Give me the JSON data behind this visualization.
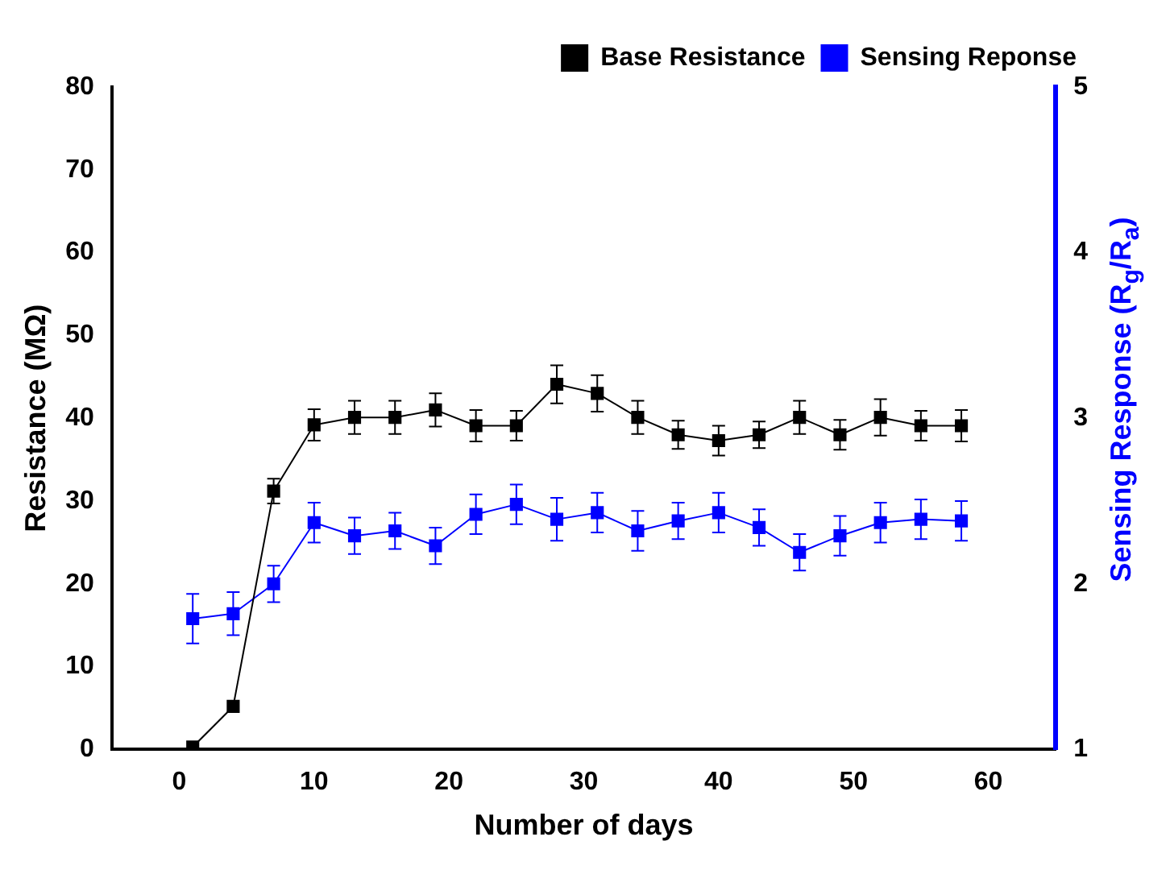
{
  "chart_data": {
    "type": "line",
    "xlabel": "Number of days",
    "ylabel": "Resistance (MΩ)",
    "y2label": "Sensing Response (R$_{g}$/R$_{a}$)",
    "x": [
      1,
      4,
      7,
      10,
      13,
      16,
      19,
      22,
      25,
      28,
      31,
      34,
      37,
      40,
      43,
      46,
      49,
      52,
      55,
      58
    ],
    "series": [
      {
        "name": "Base Resistance",
        "color": "#000000",
        "values": [
          0.3,
          5.2,
          31.2,
          39.2,
          40.1,
          40.1,
          41.0,
          39.1,
          39.1,
          44.1,
          43.0,
          40.1,
          38.0,
          37.3,
          38.0,
          40.1,
          38.0,
          40.1,
          39.1,
          39.1
        ],
        "errors": [
          null,
          null,
          1.5,
          1.9,
          2,
          2,
          2,
          1.9,
          1.8,
          2.3,
          2.2,
          2,
          1.7,
          1.8,
          1.6,
          2,
          1.8,
          2.2,
          1.8,
          1.9
        ]
      },
      {
        "name": "Sensing Reponse",
        "color": "#0000ff",
        "axis": "y2",
        "values": [
          1.79,
          1.82,
          2.0,
          2.37,
          2.29,
          2.32,
          2.23,
          2.42,
          2.48,
          2.39,
          2.43,
          2.32,
          2.38,
          2.43,
          2.34,
          2.19,
          2.29,
          2.37,
          2.39,
          2.38
        ],
        "errors": [
          0.15,
          0.13,
          0.11,
          0.12,
          0.11,
          0.11,
          0.11,
          0.12,
          0.12,
          0.13,
          0.12,
          0.12,
          0.11,
          0.12,
          0.11,
          0.11,
          0.12,
          0.12,
          0.12,
          0.12
        ]
      }
    ],
    "xlim": [
      -5,
      65
    ],
    "xticks": [
      0,
      10,
      20,
      30,
      40,
      50,
      60
    ],
    "ylim": [
      0,
      80
    ],
    "yticks": [
      0,
      10,
      20,
      30,
      40,
      50,
      60,
      70,
      80
    ],
    "y2lim": [
      1,
      5
    ],
    "y2ticks": [
      1,
      2,
      3,
      4,
      5
    ],
    "marker": "square",
    "line_style": "solid",
    "grid": false,
    "legend": "top right"
  }
}
